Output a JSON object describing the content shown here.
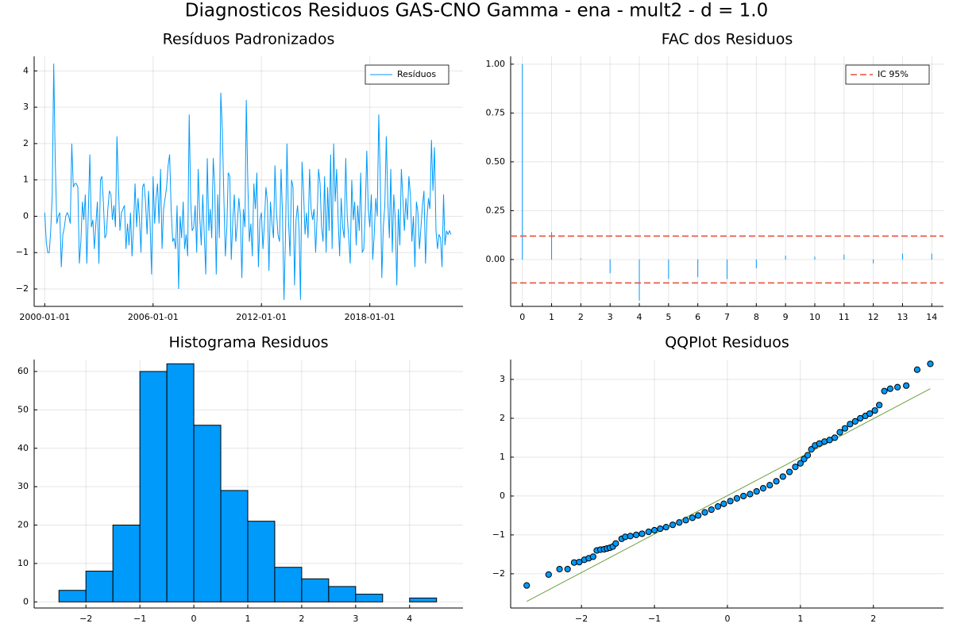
{
  "title": "Diagnosticos Residuos  GAS-CNO Gamma - ena - mult2 - d = 1.0",
  "chart_data": [
    {
      "type": "line",
      "title": "Resíduos Padronizados",
      "x": [
        "2000-01-01",
        "2000-02-01",
        "2000-03-01",
        "2000-04-01",
        "2000-05-01",
        "2000-06-01",
        "2000-07-01",
        "2000-08-01",
        "2000-09-01",
        "2000-10-01",
        "2000-11-01",
        "2000-12-01",
        "2001-01-01",
        "2001-02-01",
        "2001-03-01",
        "2001-04-01",
        "2001-05-01",
        "2001-06-01",
        "2001-07-01",
        "2001-08-01",
        "2001-09-01",
        "2001-10-01",
        "2001-11-01",
        "2001-12-01",
        "2002-01-01",
        "2002-02-01",
        "2002-03-01",
        "2002-04-01",
        "2002-05-01",
        "2002-06-01",
        "2002-07-01",
        "2002-08-01",
        "2002-09-01",
        "2002-10-01",
        "2002-11-01",
        "2002-12-01",
        "2003-01-01",
        "2003-02-01",
        "2003-03-01",
        "2003-04-01",
        "2003-05-01",
        "2003-06-01",
        "2003-07-01",
        "2003-08-01",
        "2003-09-01",
        "2003-10-01",
        "2003-11-01",
        "2003-12-01",
        "2004-01-01",
        "2004-02-01",
        "2004-03-01",
        "2004-04-01",
        "2004-05-01",
        "2004-06-01",
        "2004-07-01",
        "2004-08-01",
        "2004-09-01",
        "2004-10-01",
        "2004-11-01",
        "2004-12-01",
        "2005-01-01",
        "2005-02-01",
        "2005-03-01",
        "2005-04-01",
        "2005-05-01",
        "2005-06-01",
        "2005-07-01",
        "2005-08-01",
        "2005-09-01",
        "2005-10-01",
        "2005-11-01",
        "2005-12-01",
        "2006-01-01",
        "2006-02-01",
        "2006-03-01",
        "2006-04-01",
        "2006-05-01",
        "2006-06-01",
        "2006-07-01",
        "2006-08-01",
        "2006-09-01",
        "2006-10-01",
        "2006-11-01",
        "2006-12-01",
        "2007-01-01",
        "2007-02-01",
        "2007-03-01",
        "2007-04-01",
        "2007-05-01",
        "2007-06-01",
        "2007-07-01",
        "2007-08-01",
        "2007-09-01",
        "2007-10-01",
        "2007-11-01",
        "2007-12-01",
        "2008-01-01",
        "2008-02-01",
        "2008-03-01",
        "2008-04-01",
        "2008-05-01",
        "2008-06-01",
        "2008-07-01",
        "2008-08-01",
        "2008-09-01",
        "2008-10-01",
        "2008-11-01",
        "2008-12-01",
        "2009-01-01",
        "2009-02-01",
        "2009-03-01",
        "2009-04-01",
        "2009-05-01",
        "2009-06-01",
        "2009-07-01",
        "2009-08-01",
        "2009-09-01",
        "2009-10-01",
        "2009-11-01",
        "2009-12-01",
        "2010-01-01",
        "2010-02-01",
        "2010-03-01",
        "2010-04-01",
        "2010-05-01",
        "2010-06-01",
        "2010-07-01",
        "2010-08-01",
        "2010-09-01",
        "2010-10-01",
        "2010-11-01",
        "2010-12-01",
        "2011-01-01",
        "2011-02-01",
        "2011-03-01",
        "2011-04-01",
        "2011-05-01",
        "2011-06-01",
        "2011-07-01",
        "2011-08-01",
        "2011-09-01",
        "2011-10-01",
        "2011-11-01",
        "2011-12-01",
        "2012-01-01",
        "2012-02-01",
        "2012-03-01",
        "2012-04-01",
        "2012-05-01",
        "2012-06-01",
        "2012-07-01",
        "2012-08-01",
        "2012-09-01",
        "2012-10-01",
        "2012-11-01",
        "2012-12-01",
        "2013-01-01",
        "2013-02-01",
        "2013-03-01",
        "2013-04-01",
        "2013-05-01",
        "2013-06-01",
        "2013-07-01",
        "2013-08-01",
        "2013-09-01",
        "2013-10-01",
        "2013-11-01",
        "2013-12-01",
        "2014-01-01",
        "2014-02-01",
        "2014-03-01",
        "2014-04-01",
        "2014-05-01",
        "2014-06-01",
        "2014-07-01",
        "2014-08-01",
        "2014-09-01",
        "2014-10-01",
        "2014-11-01",
        "2014-12-01",
        "2015-01-01",
        "2015-02-01",
        "2015-03-01",
        "2015-04-01",
        "2015-05-01",
        "2015-06-01",
        "2015-07-01",
        "2015-08-01",
        "2015-09-01",
        "2015-10-01",
        "2015-11-01",
        "2015-12-01",
        "2016-01-01",
        "2016-02-01",
        "2016-03-01",
        "2016-04-01",
        "2016-05-01",
        "2016-06-01",
        "2016-07-01",
        "2016-08-01",
        "2016-09-01",
        "2016-10-01",
        "2016-11-01",
        "2016-12-01",
        "2017-01-01",
        "2017-02-01",
        "2017-03-01",
        "2017-04-01",
        "2017-05-01",
        "2017-06-01",
        "2017-07-01",
        "2017-08-01",
        "2017-09-01",
        "2017-10-01",
        "2017-11-01",
        "2017-12-01",
        "2018-01-01",
        "2018-02-01",
        "2018-03-01",
        "2018-04-01",
        "2018-05-01",
        "2018-06-01",
        "2018-07-01",
        "2018-08-01",
        "2018-09-01",
        "2018-10-01",
        "2018-11-01",
        "2018-12-01",
        "2019-01-01",
        "2019-02-01",
        "2019-03-01",
        "2019-04-01",
        "2019-05-01",
        "2019-06-01",
        "2019-07-01",
        "2019-08-01",
        "2019-09-01",
        "2019-10-01",
        "2019-11-01",
        "2019-12-01",
        "2020-01-01",
        "2020-02-01",
        "2020-03-01",
        "2020-04-01",
        "2020-05-01",
        "2020-06-01",
        "2020-07-01",
        "2020-08-01",
        "2020-09-01",
        "2020-10-01",
        "2020-11-01",
        "2020-12-01",
        "2021-01-01",
        "2021-02-01",
        "2021-03-01",
        "2021-04-01",
        "2021-05-01",
        "2021-06-01",
        "2021-07-01",
        "2021-08-01",
        "2021-09-01",
        "2021-10-01",
        "2021-11-01",
        "2021-12-01",
        "2022-01-01",
        "2022-02-01",
        "2022-03-01",
        "2022-04-01",
        "2022-05-01",
        "2022-06-01",
        "2022-07-01"
      ],
      "series": [
        {
          "name": "Resíduos",
          "color": "#009AFA",
          "values": [
            0.1,
            -0.7,
            -1.0,
            -1.0,
            -0.4,
            0.6,
            4.2,
            1.5,
            -0.2,
            0.0,
            0.1,
            -1.4,
            -0.5,
            -0.3,
            0.0,
            0.1,
            0.0,
            -0.2,
            2.0,
            0.8,
            0.9,
            0.9,
            0.8,
            -1.3,
            -0.7,
            0.4,
            -0.1,
            0.6,
            -1.3,
            0.1,
            1.7,
            -0.3,
            -0.1,
            -0.9,
            -0.2,
            0.4,
            -1.3,
            1.0,
            1.1,
            0.4,
            -0.6,
            -0.5,
            0.2,
            0.7,
            0.6,
            -0.1,
            0.3,
            -0.3,
            2.2,
            0.8,
            -0.4,
            0.1,
            0.2,
            0.3,
            -0.9,
            -0.2,
            -0.8,
            0.1,
            -1.1,
            -0.3,
            0.9,
            -0.3,
            0.5,
            -0.1,
            -1.0,
            0.8,
            0.9,
            0.4,
            -0.5,
            0.7,
            -0.2,
            -1.6,
            1.1,
            -0.2,
            0.5,
            0.9,
            -0.2,
            1.3,
            -0.9,
            0.2,
            0.5,
            0.8,
            1.4,
            1.7,
            0.2,
            -0.7,
            -0.6,
            -0.9,
            0.3,
            -2.0,
            0.0,
            -0.6,
            0.4,
            -0.9,
            -0.5,
            -1.1,
            2.8,
            0.4,
            -0.4,
            -0.3,
            0.3,
            -1.0,
            1.3,
            0.0,
            -0.8,
            0.6,
            -0.5,
            -1.6,
            1.6,
            -0.4,
            0.2,
            -0.6,
            1.6,
            0.8,
            -1.6,
            0.6,
            -0.6,
            3.4,
            2.4,
            0.6,
            -1.1,
            -0.3,
            1.2,
            1.1,
            -1.2,
            -0.1,
            0.6,
            -0.7,
            -0.2,
            0.5,
            0.0,
            -1.7,
            0.2,
            -0.3,
            3.2,
            0.9,
            -0.7,
            -0.2,
            -1.1,
            0.9,
            0.2,
            1.2,
            -1.4,
            -0.1,
            0.1,
            -0.9,
            -0.2,
            0.8,
            0.4,
            -1.5,
            0.4,
            -0.2,
            -0.6,
            1.4,
            0.1,
            -0.5,
            -0.7,
            1.3,
            0.1,
            -2.3,
            -0.6,
            2.0,
            -0.1,
            -1.1,
            1.0,
            0.8,
            -1.9,
            -0.1,
            0.3,
            -0.4,
            -2.3,
            1.5,
            0.7,
            -0.5,
            0.1,
            -0.6,
            1.3,
            0.2,
            -0.1,
            0.2,
            -1.0,
            0.0,
            1.3,
            0.9,
            -0.3,
            -0.7,
            1.1,
            -1.0,
            0.8,
            -0.4,
            1.7,
            -0.9,
            2.0,
            0.4,
            1.3,
            -0.1,
            -1.1,
            0.5,
            -0.3,
            -0.6,
            1.6,
            0.0,
            -0.6,
            -1.3,
            1.0,
            -0.1,
            0.4,
            -0.8,
            0.3,
            -0.4,
            1.2,
            -1.0,
            -0.9,
            0.1,
            1.8,
            0.2,
            -0.3,
            0.6,
            -1.2,
            -0.5,
            0.5,
            0.0,
            2.8,
            1.0,
            -1.7,
            -0.3,
            0.3,
            2.2,
            0.4,
            -0.6,
            1.3,
            -1.0,
            0.6,
            -0.1,
            -1.9,
            0.2,
            -0.8,
            1.3,
            0.5,
            -0.4,
            0.5,
            -0.1,
            1.1,
            0.6,
            -0.7,
            0.0,
            -1.4,
            0.4,
            0.1,
            -0.9,
            -0.3,
            0.3,
            0.7,
            -1.3,
            -0.1,
            0.5,
            0.2,
            2.1,
            0.7,
            1.9,
            -0.4,
            -0.9,
            -0.5,
            -0.6,
            -1.4,
            0.6,
            -0.8,
            -0.4,
            -0.5,
            -0.4,
            -0.5
          ]
        }
      ],
      "xlim": [
        "1999-06-01",
        "2023-03-01"
      ],
      "xticks": [
        "2000-01-01",
        "2006-01-01",
        "2012-01-01",
        "2018-01-01"
      ],
      "ylim": [
        -2.48,
        4.4
      ],
      "yticks": [
        {
          "value": -2,
          "label": "−2"
        },
        {
          "value": -1,
          "label": "−1"
        },
        0,
        1,
        2,
        3,
        4
      ],
      "grid": true,
      "legend": "top-right"
    },
    {
      "type": "stem",
      "title": "FAC dos Residuos",
      "x": [
        0,
        1,
        2,
        3,
        4,
        5,
        6,
        7,
        8,
        9,
        10,
        11,
        12,
        13,
        14
      ],
      "values": [
        1.0,
        0.14,
        0.005,
        -0.07,
        -0.21,
        -0.1,
        -0.09,
        -0.1,
        -0.045,
        0.02,
        0.015,
        0.025,
        -0.02,
        0.03,
        0.03
      ],
      "color": "#009AFA",
      "hlines": {
        "name": "IC 95%",
        "color": "#E8503F",
        "values": [
          0.12,
          -0.12
        ]
      },
      "xlim": [
        -0.4,
        14.4
      ],
      "xticks": [
        0,
        1,
        2,
        3,
        4,
        5,
        6,
        7,
        8,
        9,
        10,
        11,
        12,
        13,
        14
      ],
      "ylim": [
        -0.24,
        1.04
      ],
      "yticks": [
        {
          "value": 0,
          "label": "0.00"
        },
        {
          "value": 0.25,
          "label": "0.25"
        },
        {
          "value": 0.5,
          "label": "0.50"
        },
        {
          "value": 0.75,
          "label": "0.75"
        },
        {
          "value": 1,
          "label": "1.00"
        }
      ],
      "grid": true,
      "legend": "top-right"
    },
    {
      "type": "histogram",
      "title": "Histograma Residuos",
      "bins": [
        -2.5,
        -2,
        -1.5,
        -1,
        -0.5,
        0,
        0.5,
        1,
        1.5,
        2,
        2.5,
        3,
        3.5,
        4,
        4.5
      ],
      "values": [
        3,
        8,
        20,
        60,
        62,
        46,
        29,
        21,
        9,
        6,
        4,
        2,
        0,
        1
      ],
      "color": "#009AFA",
      "xlim": [
        -2.96,
        4.99
      ],
      "xticks": [
        {
          "value": -2,
          "label": "−2"
        },
        {
          "value": -1,
          "label": "−1"
        },
        0,
        1,
        2,
        3,
        4
      ],
      "ylim": [
        -1.6,
        63.1
      ],
      "yticks": [
        0,
        10,
        20,
        30,
        40,
        50,
        60
      ],
      "grid": true
    },
    {
      "type": "scatter",
      "title": "QQPlot Residuos",
      "x": [
        -2.75,
        -2.45,
        -2.3,
        -2.19,
        -2.1,
        -2.03,
        -1.96,
        -1.9,
        -1.84,
        -1.79,
        -1.74,
        -1.69,
        -1.65,
        -1.61,
        -1.57,
        -1.53,
        -1.45,
        -1.4,
        -1.33,
        -1.25,
        -1.17,
        -1.08,
        -1.0,
        -0.92,
        -0.84,
        -0.75,
        -0.66,
        -0.57,
        -0.48,
        -0.4,
        -0.31,
        -0.22,
        -0.13,
        -0.05,
        0.04,
        0.13,
        0.22,
        0.31,
        0.4,
        0.49,
        0.58,
        0.67,
        0.76,
        0.85,
        0.93,
        1.0,
        1.05,
        1.1,
        1.15,
        1.2,
        1.26,
        1.33,
        1.4,
        1.47,
        1.54,
        1.61,
        1.68,
        1.75,
        1.82,
        1.89,
        1.95,
        2.02,
        2.08,
        2.15,
        2.23,
        2.33,
        2.45,
        2.6,
        2.78
      ],
      "values": [
        -2.3,
        -2.02,
        -1.88,
        -1.88,
        -1.71,
        -1.7,
        -1.64,
        -1.6,
        -1.56,
        -1.4,
        -1.38,
        -1.37,
        -1.35,
        -1.33,
        -1.3,
        -1.22,
        -1.1,
        -1.05,
        -1.03,
        -1.0,
        -0.97,
        -0.92,
        -0.88,
        -0.84,
        -0.8,
        -0.74,
        -0.68,
        -0.62,
        -0.56,
        -0.5,
        -0.42,
        -0.35,
        -0.27,
        -0.2,
        -0.13,
        -0.06,
        0.0,
        0.05,
        0.12,
        0.2,
        0.28,
        0.38,
        0.5,
        0.62,
        0.75,
        0.84,
        0.95,
        1.05,
        1.2,
        1.3,
        1.35,
        1.4,
        1.44,
        1.5,
        1.64,
        1.74,
        1.85,
        1.92,
        2.0,
        2.06,
        2.12,
        2.2,
        2.34,
        2.7,
        2.76,
        2.8,
        2.84,
        3.25,
        3.4
      ],
      "color": "#009AFA",
      "line": {
        "x": [
          -2.75,
          2.78
        ],
        "values": [
          -2.71,
          2.76
        ],
        "color": "#6F9E3F"
      },
      "xlim": [
        -2.97,
        2.96
      ],
      "xticks": [
        {
          "value": -2,
          "label": "−2"
        },
        {
          "value": -1,
          "label": "−1"
        },
        0,
        1,
        2
      ],
      "ylim": [
        -2.88,
        3.51
      ],
      "yticks": [
        {
          "value": -2,
          "label": "−2"
        },
        {
          "value": -1,
          "label": "−1"
        },
        0,
        1,
        2,
        3
      ],
      "grid": true
    }
  ]
}
